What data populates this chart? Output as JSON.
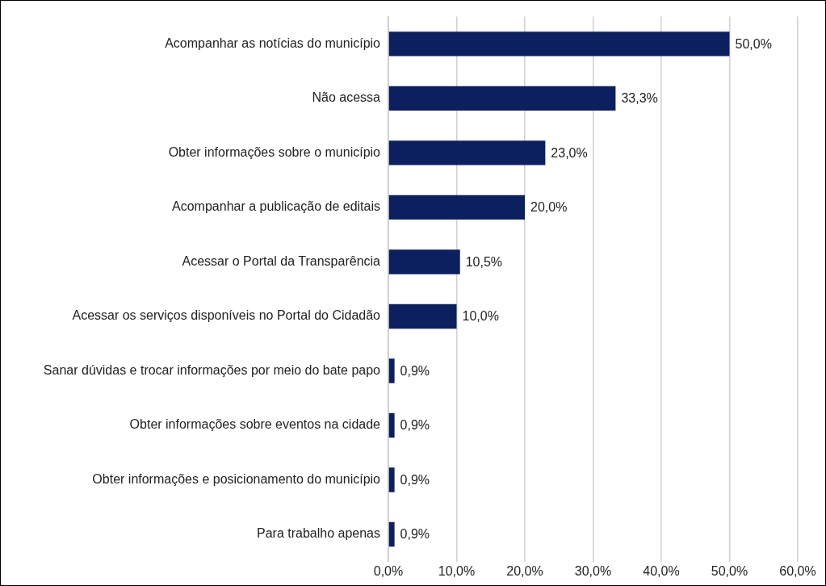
{
  "chart_data": {
    "type": "bar",
    "orientation": "horizontal",
    "categories": [
      "Acompanhar as notícias do município",
      "Não acessa",
      "Obter informações sobre o município",
      "Acompanhar a publicação de editais",
      "Acessar o Portal da Transparência",
      "Acessar os serviços disponíveis no Portal do Cidadão",
      "Sanar dúvidas e trocar informações por meio do bate papo",
      "Obter informações sobre eventos na cidade",
      "Obter informações e posicionamento do município",
      "Para trabalho apenas"
    ],
    "values": [
      50.0,
      33.3,
      23.0,
      20.0,
      10.5,
      10.0,
      0.9,
      0.9,
      0.9,
      0.9
    ],
    "value_labels": [
      "50,0%",
      "33,3%",
      "23,0%",
      "20,0%",
      "10,5%",
      "10,0%",
      "0,9%",
      "0,9%",
      "0,9%",
      "0,9%"
    ],
    "color": "#0c1f5e",
    "xlim": [
      0,
      60
    ],
    "xticks": [
      {
        "value": 0,
        "label": "0,0%"
      },
      {
        "value": 10,
        "label": "10,0%"
      },
      {
        "value": 20,
        "label": "20,0%"
      },
      {
        "value": 30,
        "label": "30,0%"
      },
      {
        "value": 40,
        "label": "40,0%"
      },
      {
        "value": 50,
        "label": "50,0%"
      },
      {
        "value": 60,
        "label": "60,0%"
      }
    ],
    "grid": "x",
    "legend": false
  }
}
